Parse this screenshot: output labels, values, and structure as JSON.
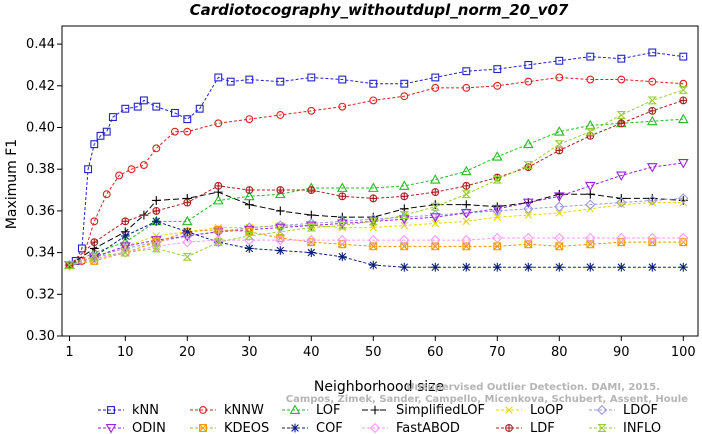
{
  "chart_data": {
    "type": "line",
    "title": "Cardiotocography_withoutdupl_norm_20_v07",
    "xlabel": "Neighborhood size",
    "ylabel": "Maximum F1",
    "xlim": [
      1,
      100
    ],
    "ylim": [
      0.3,
      0.445
    ],
    "x_ticks": [
      "1",
      "10",
      "20",
      "30",
      "40",
      "50",
      "60",
      "70",
      "80",
      "90",
      "100"
    ],
    "y_ticks": [
      "0.30",
      "0.32",
      "0.34",
      "0.36",
      "0.38",
      "0.40",
      "0.42",
      "0.44"
    ],
    "grid": false,
    "legend_position": "bottom",
    "credit": [
      "Campos, Zimek, Sander, Campello, Micenkova, Schubert, Assent, Houle",
      "Unsupervised Outlier Detection. DAMI, 2015."
    ],
    "series": [
      {
        "name": "kNN",
        "color": "#2222cc",
        "marker": "square",
        "dash": "3,2",
        "x": [
          1,
          2,
          3,
          4,
          5,
          6,
          7,
          8,
          10,
          12,
          13,
          15,
          18,
          20,
          22,
          25,
          27,
          30,
          35,
          40,
          45,
          50,
          55,
          60,
          65,
          70,
          75,
          80,
          85,
          90,
          95,
          100
        ],
        "values": [
          0.334,
          0.336,
          0.342,
          0.38,
          0.392,
          0.396,
          0.398,
          0.405,
          0.409,
          0.41,
          0.413,
          0.41,
          0.407,
          0.404,
          0.409,
          0.424,
          0.422,
          0.423,
          0.422,
          0.424,
          0.423,
          0.421,
          0.421,
          0.424,
          0.427,
          0.428,
          0.43,
          0.432,
          0.434,
          0.433,
          0.436,
          0.434
        ]
      },
      {
        "name": "kNNW",
        "color": "#dd2222",
        "marker": "circle",
        "dash": "3,2",
        "x": [
          1,
          3,
          5,
          7,
          9,
          11,
          13,
          15,
          18,
          20,
          25,
          30,
          35,
          40,
          45,
          50,
          55,
          60,
          65,
          70,
          75,
          80,
          85,
          90,
          95,
          100
        ],
        "values": [
          0.334,
          0.336,
          0.355,
          0.368,
          0.377,
          0.38,
          0.382,
          0.39,
          0.398,
          0.398,
          0.402,
          0.404,
          0.406,
          0.408,
          0.41,
          0.413,
          0.415,
          0.419,
          0.419,
          0.42,
          0.422,
          0.424,
          0.423,
          0.423,
          0.422,
          0.421
        ]
      },
      {
        "name": "LOF",
        "color": "#22bb22",
        "marker": "triangle",
        "dash": "3,2",
        "x": [
          1,
          5,
          10,
          15,
          20,
          25,
          30,
          35,
          40,
          45,
          50,
          55,
          60,
          65,
          70,
          75,
          80,
          85,
          90,
          95,
          100
        ],
        "values": [
          0.334,
          0.34,
          0.345,
          0.355,
          0.355,
          0.365,
          0.367,
          0.368,
          0.371,
          0.371,
          0.371,
          0.372,
          0.375,
          0.379,
          0.386,
          0.392,
          0.398,
          0.401,
          0.402,
          0.403,
          0.404
        ]
      },
      {
        "name": "SimplifiedLOF",
        "color": "#000000",
        "marker": "plus",
        "dash": "6,3",
        "x": [
          1,
          5,
          10,
          13,
          15,
          20,
          25,
          30,
          35,
          40,
          45,
          50,
          55,
          60,
          65,
          70,
          75,
          80,
          85,
          90,
          95,
          100
        ],
        "values": [
          0.334,
          0.342,
          0.35,
          0.358,
          0.365,
          0.366,
          0.369,
          0.363,
          0.36,
          0.358,
          0.357,
          0.357,
          0.361,
          0.363,
          0.363,
          0.362,
          0.364,
          0.368,
          0.368,
          0.366,
          0.366,
          0.365
        ]
      },
      {
        "name": "LoOP",
        "color": "#e6d800",
        "marker": "x",
        "dash": "3,2",
        "x": [
          1,
          5,
          10,
          15,
          20,
          25,
          30,
          35,
          40,
          45,
          50,
          55,
          60,
          65,
          70,
          75,
          80,
          85,
          90,
          95,
          100
        ],
        "values": [
          0.334,
          0.338,
          0.343,
          0.348,
          0.35,
          0.352,
          0.352,
          0.353,
          0.353,
          0.352,
          0.352,
          0.353,
          0.354,
          0.355,
          0.357,
          0.358,
          0.359,
          0.361,
          0.363,
          0.364,
          0.364
        ]
      },
      {
        "name": "LDOF",
        "color": "#9999dd",
        "marker": "diamond",
        "dash": "3,2",
        "x": [
          1,
          5,
          10,
          15,
          20,
          25,
          30,
          35,
          40,
          45,
          50,
          55,
          60,
          65,
          70,
          75,
          80,
          85,
          90,
          95,
          100
        ],
        "values": [
          0.334,
          0.338,
          0.342,
          0.345,
          0.348,
          0.35,
          0.352,
          0.353,
          0.354,
          0.355,
          0.356,
          0.357,
          0.358,
          0.359,
          0.36,
          0.361,
          0.362,
          0.363,
          0.364,
          0.365,
          0.366
        ]
      },
      {
        "name": "ODIN",
        "color": "#9922dd",
        "marker": "triangle-down",
        "dash": "3,2",
        "x": [
          1,
          5,
          10,
          15,
          20,
          25,
          30,
          35,
          40,
          45,
          50,
          55,
          60,
          65,
          70,
          75,
          80,
          85,
          90,
          95,
          100
        ],
        "values": [
          0.334,
          0.338,
          0.343,
          0.346,
          0.348,
          0.35,
          0.351,
          0.352,
          0.353,
          0.354,
          0.355,
          0.356,
          0.357,
          0.359,
          0.361,
          0.364,
          0.367,
          0.372,
          0.377,
          0.381,
          0.383
        ]
      },
      {
        "name": "KDEOS",
        "color": "#ee9900",
        "marker": "square-x",
        "dash": "3,2",
        "x": [
          1,
          5,
          10,
          15,
          20,
          25,
          30,
          35,
          40,
          45,
          50,
          55,
          60,
          65,
          70,
          75,
          80,
          85,
          90,
          95,
          100
        ],
        "values": [
          0.334,
          0.336,
          0.34,
          0.345,
          0.35,
          0.351,
          0.35,
          0.347,
          0.345,
          0.344,
          0.343,
          0.343,
          0.343,
          0.343,
          0.343,
          0.344,
          0.343,
          0.344,
          0.345,
          0.345,
          0.345
        ]
      },
      {
        "name": "COF",
        "color": "#0a1f77",
        "marker": "star",
        "dash": "3,2",
        "x": [
          1,
          5,
          10,
          15,
          20,
          25,
          30,
          35,
          40,
          45,
          50,
          55,
          60,
          65,
          70,
          75,
          80,
          85,
          90,
          95,
          100
        ],
        "values": [
          0.334,
          0.338,
          0.348,
          0.355,
          0.35,
          0.345,
          0.342,
          0.341,
          0.34,
          0.338,
          0.334,
          0.333,
          0.333,
          0.333,
          0.333,
          0.333,
          0.333,
          0.333,
          0.333,
          0.333,
          0.333
        ]
      },
      {
        "name": "FastABOD",
        "color": "#ff99ff",
        "marker": "diamond",
        "dash": "3,2",
        "x": [
          1,
          5,
          10,
          15,
          20,
          25,
          30,
          35,
          40,
          45,
          50,
          55,
          60,
          65,
          70,
          75,
          80,
          85,
          90,
          95,
          100
        ],
        "values": [
          0.334,
          0.337,
          0.34,
          0.343,
          0.345,
          0.346,
          0.346,
          0.346,
          0.346,
          0.346,
          0.346,
          0.346,
          0.346,
          0.346,
          0.347,
          0.347,
          0.347,
          0.347,
          0.347,
          0.347,
          0.347
        ]
      },
      {
        "name": "LDF",
        "color": "#aa2222",
        "marker": "circle-plus",
        "dash": "3,2",
        "x": [
          1,
          5,
          10,
          15,
          20,
          25,
          30,
          35,
          40,
          45,
          50,
          55,
          60,
          65,
          70,
          75,
          80,
          85,
          90,
          95,
          100
        ],
        "values": [
          0.334,
          0.345,
          0.355,
          0.36,
          0.364,
          0.372,
          0.37,
          0.37,
          0.37,
          0.367,
          0.366,
          0.367,
          0.369,
          0.372,
          0.376,
          0.381,
          0.389,
          0.396,
          0.402,
          0.408,
          0.413
        ]
      },
      {
        "name": "INFLO",
        "color": "#99cc33",
        "marker": "hourglass",
        "dash": "3,2",
        "x": [
          1,
          5,
          10,
          15,
          20,
          25,
          30,
          35,
          40,
          45,
          50,
          55,
          60,
          65,
          70,
          75,
          80,
          85,
          90,
          95,
          100
        ],
        "values": [
          0.334,
          0.338,
          0.34,
          0.342,
          0.338,
          0.345,
          0.348,
          0.35,
          0.352,
          0.353,
          0.355,
          0.358,
          0.362,
          0.368,
          0.375,
          0.382,
          0.392,
          0.398,
          0.406,
          0.413,
          0.418
        ]
      }
    ]
  }
}
